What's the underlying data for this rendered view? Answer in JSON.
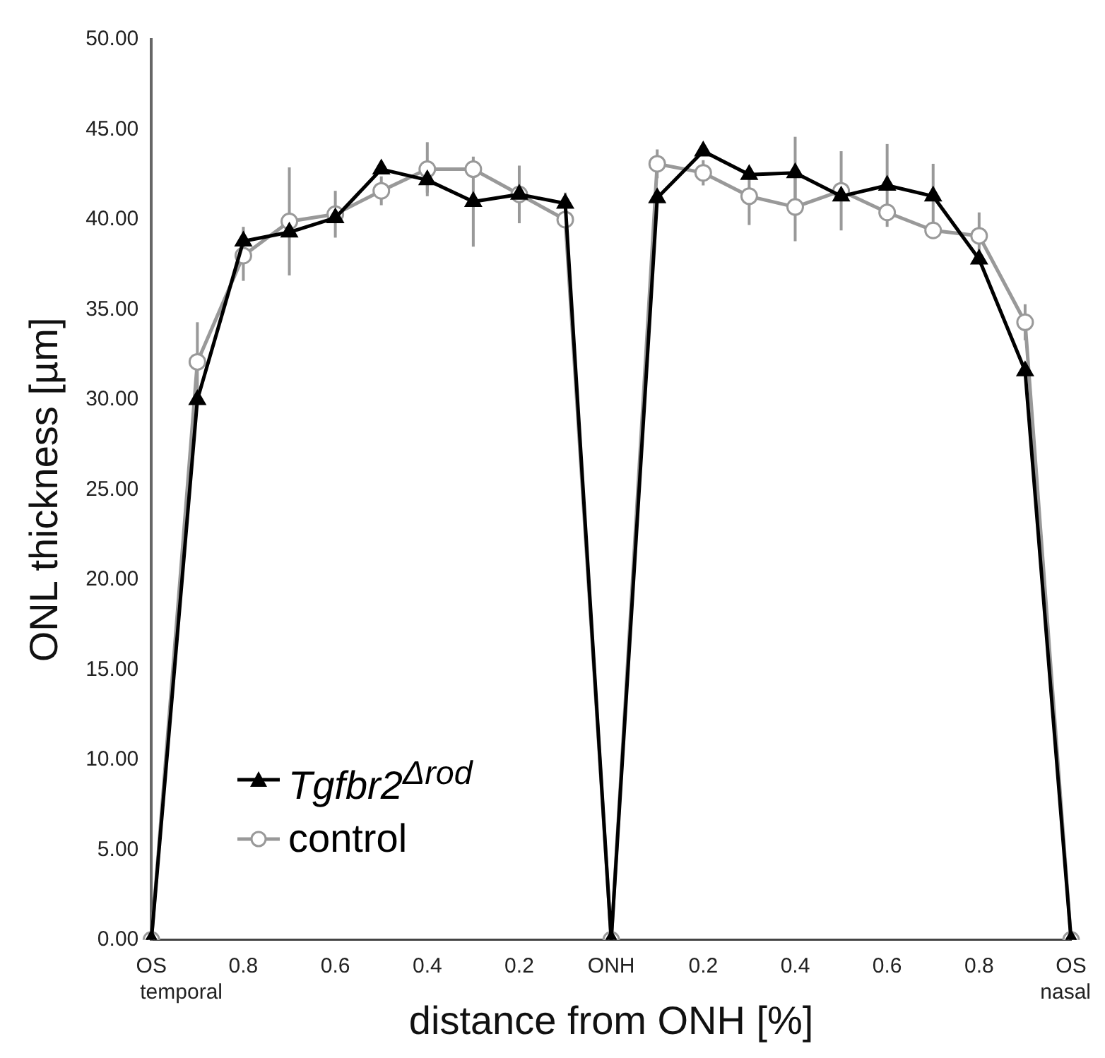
{
  "chart_data": {
    "type": "line",
    "xlabel": "distance from ONH [%]",
    "ylabel": "ONL thickness [µm]",
    "categories": [
      "OS",
      null,
      "0.8",
      null,
      "0.6",
      null,
      "0.4",
      null,
      "0.2",
      null,
      "ONH",
      null,
      "0.2",
      null,
      "0.4",
      null,
      "0.6",
      null,
      "0.8",
      null,
      "OS"
    ],
    "series": [
      {
        "name": "Tgfbr2$^{Δrod}$",
        "color": "#000000",
        "marker": "triangle",
        "values": [
          0,
          30.0,
          38.8,
          39.3,
          40.1,
          42.8,
          42.2,
          41.0,
          41.4,
          40.9,
          0,
          41.2,
          43.8,
          42.5,
          42.6,
          41.3,
          41.9,
          41.3,
          37.8,
          31.6,
          0
        ],
        "errors": [
          null,
          null,
          0.8,
          null,
          null,
          null,
          0.7,
          2.5,
          null,
          0.6,
          null,
          null,
          null,
          null,
          2.0,
          null,
          2.3,
          1.8,
          null,
          null,
          null
        ]
      },
      {
        "name": "control",
        "color": "#999999",
        "marker": "circle",
        "values": [
          0,
          32.1,
          38.0,
          39.9,
          40.3,
          41.6,
          42.8,
          42.8,
          41.4,
          40.0,
          0,
          43.1,
          42.6,
          41.3,
          40.7,
          41.6,
          40.4,
          39.4,
          39.1,
          34.3,
          0
        ],
        "errors": [
          null,
          2.2,
          1.4,
          3.0,
          1.3,
          0.8,
          1.5,
          null,
          1.6,
          null,
          null,
          0.8,
          0.7,
          1.6,
          1.9,
          2.2,
          null,
          null,
          1.3,
          1.0,
          null
        ]
      }
    ],
    "ylim": [
      0,
      50
    ],
    "yticks": [
      {
        "value": 0,
        "label": "0.00"
      },
      {
        "value": 5,
        "label": "5.00"
      },
      {
        "value": 10,
        "label": "10.00"
      },
      {
        "value": 15,
        "label": "15.00"
      },
      {
        "value": 20,
        "label": "20.00"
      },
      {
        "value": 25,
        "label": "25.00"
      },
      {
        "value": 30,
        "label": "30.00"
      },
      {
        "value": 35,
        "label": "35.00"
      },
      {
        "value": 40,
        "label": "40.00"
      },
      {
        "value": 45,
        "label": "45.00"
      },
      {
        "value": 50,
        "label": "50.00"
      }
    ],
    "grid": false,
    "legend": "bottom left",
    "line_style": "solid",
    "annotations": [
      "temporal",
      "nasal"
    ]
  }
}
